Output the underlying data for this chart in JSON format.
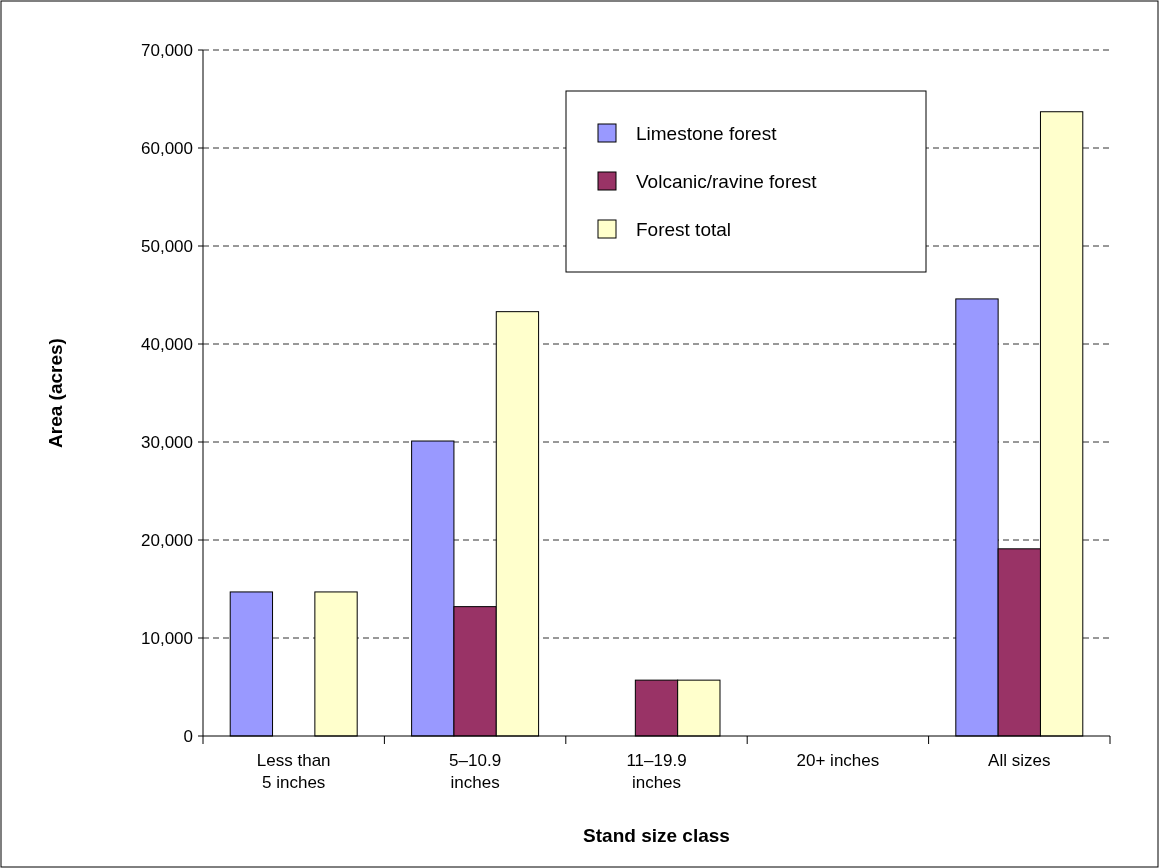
{
  "chart_data": {
    "type": "bar",
    "xlabel": "Stand size class",
    "ylabel": "Area (acres)",
    "categories": [
      "Less than\n5 inches",
      "5–10.9\ninches",
      "11–19.9\ninches",
      "20+ inches",
      "All sizes"
    ],
    "series": [
      {
        "name": "Limestone forest",
        "color": "#9999ff",
        "values": [
          14700,
          30100,
          0,
          0,
          44600
        ]
      },
      {
        "name": "Volcanic/ravine forest",
        "color": "#993366",
        "values": [
          0,
          13200,
          5700,
          0,
          19100
        ]
      },
      {
        "name": "Forest total",
        "color": "#ffffcc",
        "values": [
          14700,
          43300,
          5700,
          0,
          63700
        ]
      }
    ],
    "ylim": [
      0,
      70000
    ],
    "yticks": [
      {
        "value": 0,
        "label": "0"
      },
      {
        "value": 10000,
        "label": "10,000"
      },
      {
        "value": 20000,
        "label": "20,000"
      },
      {
        "value": 30000,
        "label": "30,000"
      },
      {
        "value": 40000,
        "label": "40,000"
      },
      {
        "value": 50000,
        "label": "50,000"
      },
      {
        "value": 60000,
        "label": "60,000"
      },
      {
        "value": 70000,
        "label": "70,000"
      }
    ],
    "grid": "y",
    "legend": "top right"
  }
}
